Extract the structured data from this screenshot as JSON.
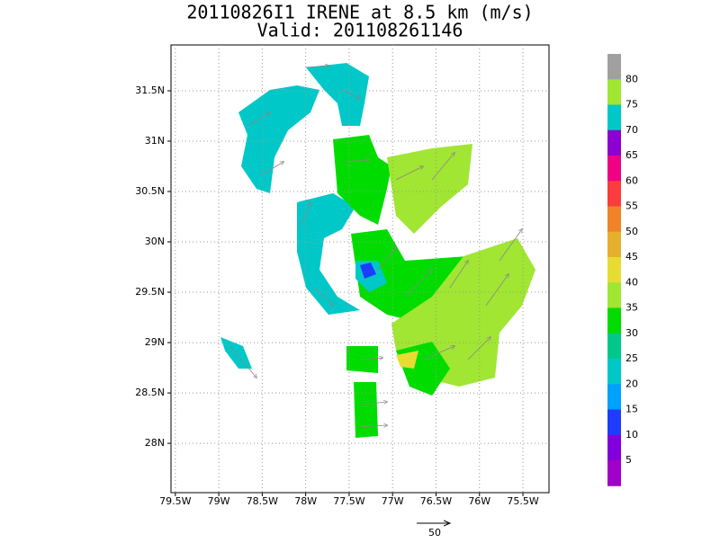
{
  "title": [
    "20110826I1 IRENE at 8.5 km (m/s)",
    "Valid: 201108261146"
  ],
  "map": {
    "xlim": [
      -79.55,
      -75.2
    ],
    "ylim": [
      27.51,
      31.955
    ],
    "grid": true,
    "xticks": [
      {
        "value": -79.5,
        "label": "79.5W"
      },
      {
        "value": -79,
        "label": "79W"
      },
      {
        "value": -78.5,
        "label": "78.5W"
      },
      {
        "value": -78,
        "label": "78W"
      },
      {
        "value": -77.5,
        "label": "77.5W"
      },
      {
        "value": -77,
        "label": "77W"
      },
      {
        "value": -76.5,
        "label": "76.5W"
      },
      {
        "value": -76,
        "label": "76W"
      },
      {
        "value": -75.5,
        "label": "75.5W"
      }
    ],
    "yticks": [
      {
        "value": 28,
        "label": "28N"
      },
      {
        "value": 28.5,
        "label": "28.5N"
      },
      {
        "value": 29,
        "label": "29N"
      },
      {
        "value": 29.5,
        "label": "29.5N"
      },
      {
        "value": 30,
        "label": "30N"
      },
      {
        "value": 30.5,
        "label": "30.5N"
      },
      {
        "value": 31,
        "label": "31N"
      },
      {
        "value": 31.5,
        "label": "31.5N"
      }
    ]
  },
  "colorbar": {
    "labels": [
      80,
      75,
      70,
      65,
      60,
      55,
      50,
      45,
      40,
      35,
      30,
      25,
      20,
      15,
      10,
      5
    ],
    "colors": [
      "#a0a0a0",
      "#a0e632",
      "#00c8c8",
      "#8c00d2",
      "#f00082",
      "#fa3c3c",
      "#f08228",
      "#e6af2d",
      "#e6dc32",
      "#a0e632",
      "#00dc00",
      "#00c88c",
      "#00c8c8",
      "#00a0ff",
      "#1e3cff",
      "#8200dc",
      "#a000c8"
    ]
  },
  "reference_vector": {
    "label": "50"
  }
}
